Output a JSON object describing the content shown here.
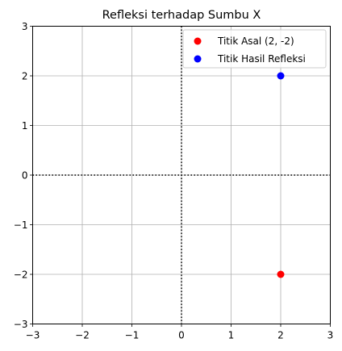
{
  "chart_data": {
    "type": "scatter",
    "title": "Refleksi terhadap Sumbu X",
    "xlabel": "",
    "ylabel": "",
    "xlim": [
      -3,
      3
    ],
    "ylim": [
      -3,
      3
    ],
    "xticks": [
      -3,
      -2,
      -1,
      0,
      1,
      2,
      3
    ],
    "yticks": [
      -3,
      -2,
      -1,
      0,
      1,
      2,
      3
    ],
    "xtick_labels": [
      "−3",
      "−2",
      "−1",
      "0",
      "1",
      "2",
      "3"
    ],
    "ytick_labels": [
      "−3",
      "−2",
      "−1",
      "0",
      "1",
      "2",
      "3"
    ],
    "grid": true,
    "reference_lines": {
      "x0": true,
      "y0": true,
      "style": "dotted",
      "color": "#000000"
    },
    "legend_position": "top-right",
    "series": [
      {
        "name": "Titik Asal (2, -2)",
        "color": "#ff0000",
        "points": [
          {
            "x": 2,
            "y": -2
          }
        ]
      },
      {
        "name": "Titik Hasil Refleksi",
        "color": "#0000ff",
        "points": [
          {
            "x": 2,
            "y": 2
          }
        ]
      }
    ]
  }
}
